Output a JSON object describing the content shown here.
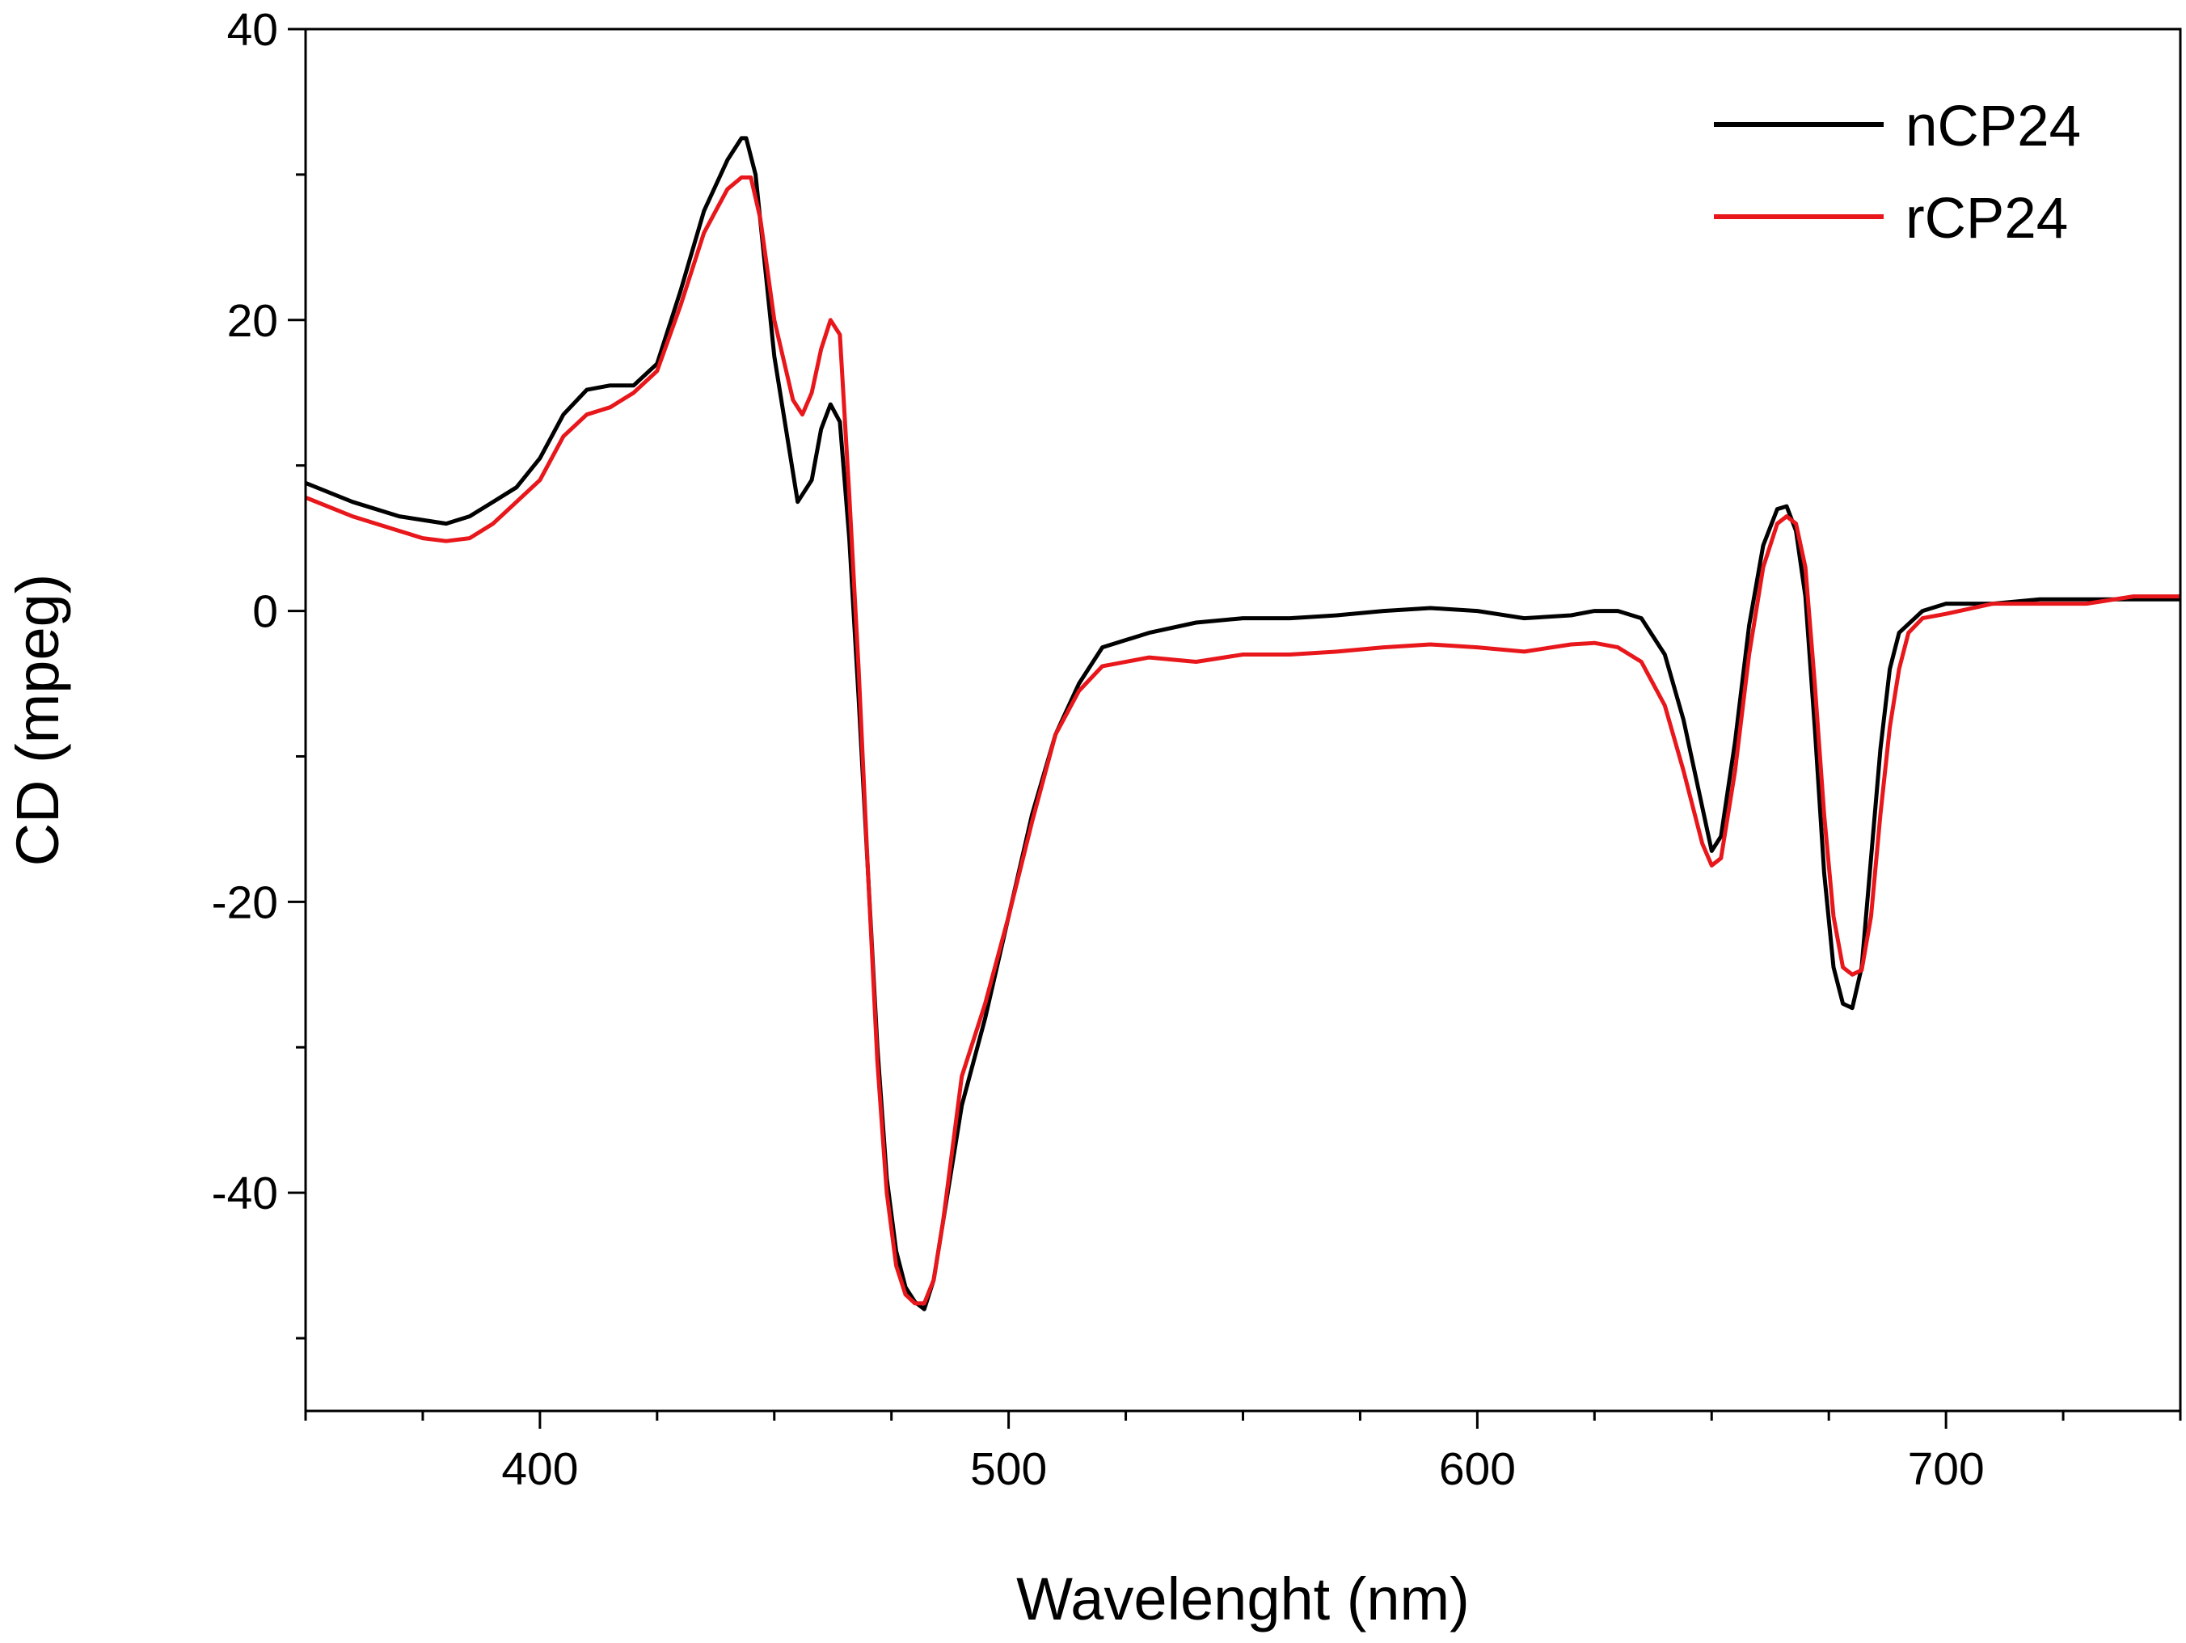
{
  "chart_data": {
    "type": "line",
    "xlabel": "Wavelenght (nm)",
    "ylabel": "CD (mpeg)",
    "xlim": [
      350,
      750
    ],
    "ylim": [
      -55,
      40
    ],
    "xticks": [
      400,
      500,
      600,
      700
    ],
    "xtick_labels": [
      "400",
      "500",
      "600",
      "700"
    ],
    "yticks": [
      40,
      20,
      0,
      -20,
      -40
    ],
    "ytick_labels": [
      "40",
      "20",
      "0",
      "-20",
      "-40"
    ],
    "x_minor_step": 25,
    "y_minor_step": 10,
    "grid": false,
    "legend_position": "top-right",
    "series": [
      {
        "name": "nCP24",
        "color": "#000000",
        "x": [
          350,
          360,
          370,
          380,
          385,
          390,
          395,
          400,
          405,
          410,
          415,
          420,
          425,
          430,
          435,
          440,
          443,
          444,
          446,
          450,
          455,
          458,
          460,
          462,
          464,
          466,
          468,
          470,
          472,
          474,
          476,
          478,
          480,
          482,
          484,
          486,
          488,
          490,
          495,
          500,
          505,
          510,
          515,
          520,
          530,
          540,
          550,
          560,
          570,
          580,
          590,
          600,
          610,
          620,
          625,
          630,
          635,
          640,
          644,
          648,
          650,
          652,
          655,
          658,
          661,
          664,
          666,
          668,
          670,
          672,
          674,
          676,
          678,
          680,
          682,
          684,
          686,
          688,
          690,
          695,
          700,
          710,
          720,
          730,
          740,
          750
        ],
        "y": [
          8.8,
          7.5,
          6.5,
          6.0,
          6.5,
          7.5,
          8.5,
          10.5,
          13.5,
          15.2,
          15.5,
          15.5,
          17.0,
          22.0,
          27.5,
          31.0,
          32.5,
          32.5,
          30.0,
          17.5,
          7.5,
          9.0,
          12.5,
          14.2,
          13.0,
          5.0,
          -6.0,
          -18.0,
          -30.0,
          -39.0,
          -44.0,
          -46.5,
          -47.5,
          -48.0,
          -46.0,
          -42.0,
          -38.0,
          -34.0,
          -28.0,
          -21.0,
          -14.0,
          -8.5,
          -5.0,
          -2.5,
          -1.5,
          -0.8,
          -0.5,
          -0.5,
          -0.3,
          0.0,
          0.2,
          0.0,
          -0.5,
          -0.3,
          0.0,
          0.0,
          -0.5,
          -3.0,
          -7.5,
          -13.5,
          -16.5,
          -15.5,
          -9.0,
          -1.0,
          4.5,
          7.0,
          7.2,
          5.5,
          1.0,
          -8.0,
          -18.0,
          -24.5,
          -27.0,
          -27.3,
          -24.5,
          -17.0,
          -9.5,
          -4.0,
          -1.5,
          0.0,
          0.5,
          0.5,
          0.8,
          0.8,
          0.8,
          0.8
        ]
      },
      {
        "name": "rCP24",
        "color": "#e8171b",
        "x": [
          350,
          360,
          370,
          375,
          380,
          385,
          390,
          395,
          400,
          405,
          410,
          415,
          420,
          425,
          430,
          435,
          440,
          443,
          445,
          447,
          450,
          454,
          456,
          458,
          460,
          462,
          464,
          466,
          468,
          470,
          472,
          474,
          476,
          478,
          480,
          482,
          484,
          486,
          488,
          490,
          495,
          500,
          505,
          510,
          515,
          520,
          530,
          540,
          550,
          560,
          570,
          580,
          590,
          600,
          610,
          620,
          625,
          630,
          635,
          640,
          644,
          648,
          650,
          652,
          655,
          658,
          661,
          664,
          666,
          668,
          670,
          672,
          674,
          676,
          678,
          680,
          682,
          684,
          686,
          688,
          690,
          692,
          695,
          700,
          710,
          720,
          730,
          740,
          750
        ],
        "y": [
          7.8,
          6.5,
          5.5,
          5.0,
          4.8,
          5.0,
          6.0,
          7.5,
          9.0,
          12.0,
          13.5,
          14.0,
          15.0,
          16.5,
          21.0,
          26.0,
          29.0,
          29.8,
          29.8,
          27.0,
          20.0,
          14.5,
          13.5,
          15.0,
          18.0,
          20.0,
          19.0,
          8.0,
          -4.0,
          -18.0,
          -31.0,
          -40.0,
          -45.0,
          -47.0,
          -47.6,
          -47.6,
          -46.0,
          -42.0,
          -37.0,
          -32.0,
          -27.0,
          -21.0,
          -14.5,
          -8.5,
          -5.5,
          -3.8,
          -3.2,
          -3.5,
          -3.0,
          -3.0,
          -2.8,
          -2.5,
          -2.3,
          -2.5,
          -2.8,
          -2.3,
          -2.2,
          -2.5,
          -3.5,
          -6.5,
          -11.0,
          -16.0,
          -17.5,
          -17.0,
          -11.0,
          -3.0,
          3.0,
          6.0,
          6.5,
          6.0,
          3.0,
          -5.0,
          -14.0,
          -21.0,
          -24.5,
          -25.0,
          -24.7,
          -21.0,
          -14.0,
          -8.0,
          -4.0,
          -1.5,
          -0.5,
          -0.2,
          0.5,
          0.5,
          0.5,
          1.0,
          1.0
        ]
      }
    ]
  }
}
